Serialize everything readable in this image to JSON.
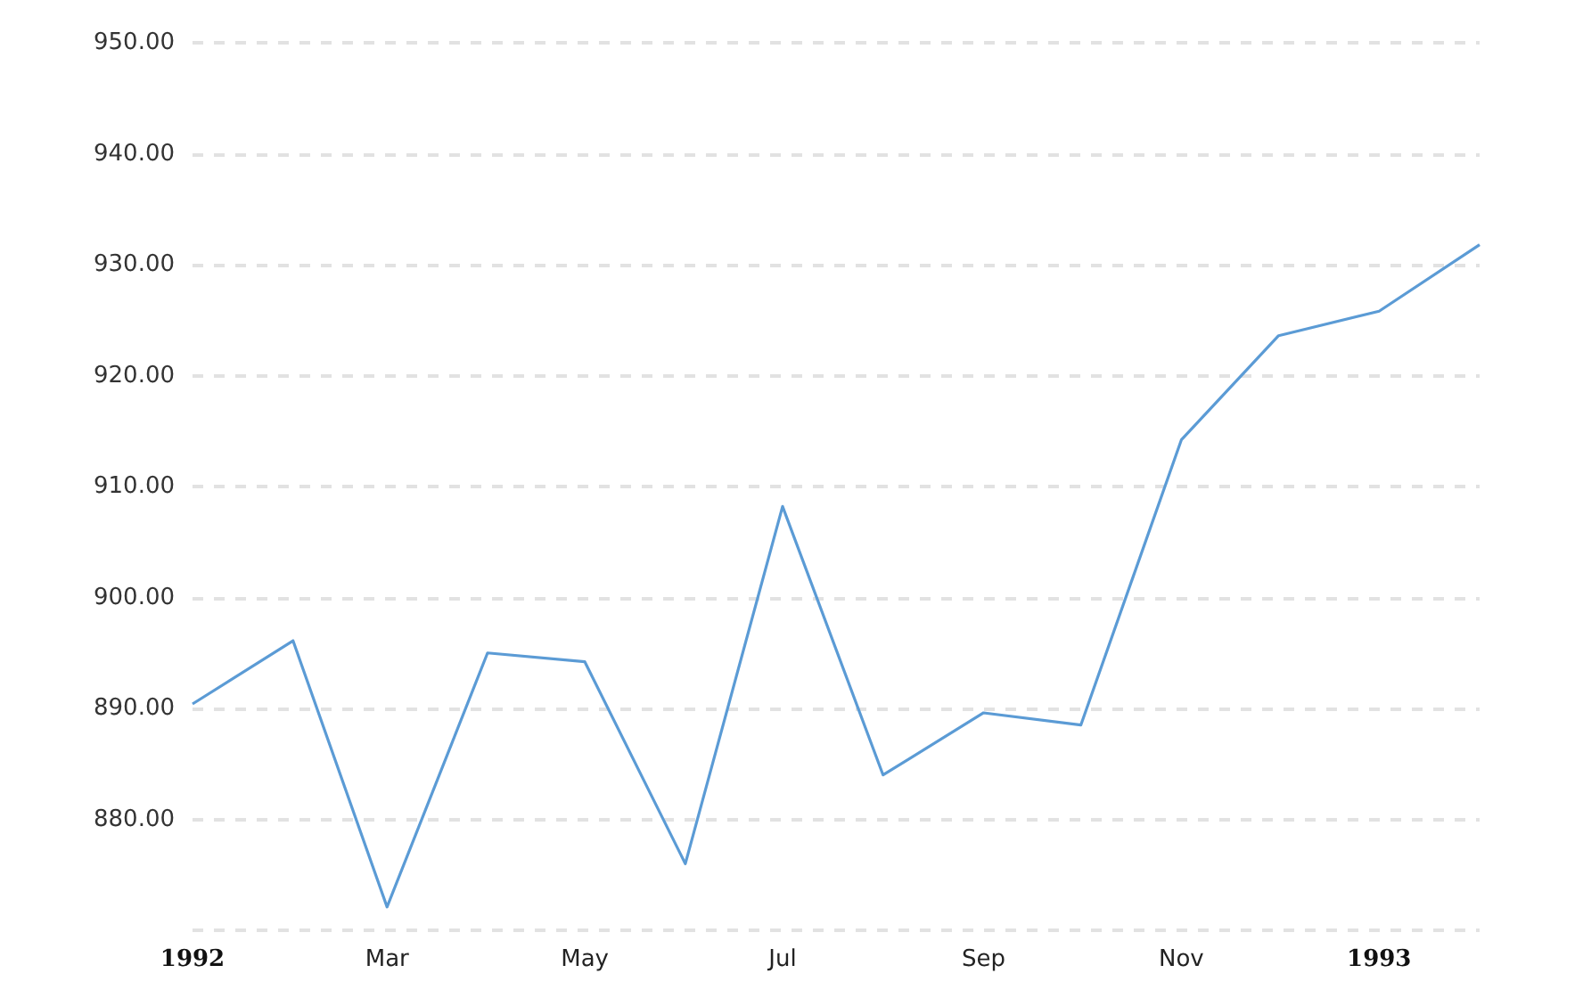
{
  "chart_data": {
    "type": "line",
    "x": [
      "1992-01",
      "1992-02",
      "1992-03",
      "1992-04",
      "1992-05",
      "1992-06",
      "1992-07",
      "1992-08",
      "1992-09",
      "1992-10",
      "1992-11",
      "1992-12",
      "1993-01",
      "1993-02"
    ],
    "series": [
      {
        "color": "#5b9bd5",
        "values": [
          890.4,
          896.1,
          872.1,
          895.0,
          894.2,
          876.0,
          908.2,
          884.0,
          889.6,
          888.5,
          914.2,
          923.6,
          925.8,
          931.8
        ]
      }
    ],
    "xlim": [
      "1992-01",
      "1993-02"
    ],
    "xticks": [
      {
        "value": "1992-01",
        "label": "1992"
      },
      {
        "value": "1992-03",
        "label": "Mar"
      },
      {
        "value": "1992-05",
        "label": "May"
      },
      {
        "value": "1992-07",
        "label": "Jul"
      },
      {
        "value": "1992-09",
        "label": "Sep"
      },
      {
        "value": "1992-11",
        "label": "Nov"
      },
      {
        "value": "1993-01",
        "label": "1993"
      }
    ],
    "ylim": [
      870,
      950
    ],
    "yticks": [
      {
        "value": 880,
        "label": "880.00"
      },
      {
        "value": 890,
        "label": "890.00"
      },
      {
        "value": 900,
        "label": "900.00"
      },
      {
        "value": 910,
        "label": "910.00"
      },
      {
        "value": 920,
        "label": "920.00"
      },
      {
        "value": 930,
        "label": "930.00"
      },
      {
        "value": 940,
        "label": "940.00"
      },
      {
        "value": 950,
        "label": "950.00"
      }
    ],
    "grid": "y",
    "marker": "none",
    "line_style": "solid"
  }
}
